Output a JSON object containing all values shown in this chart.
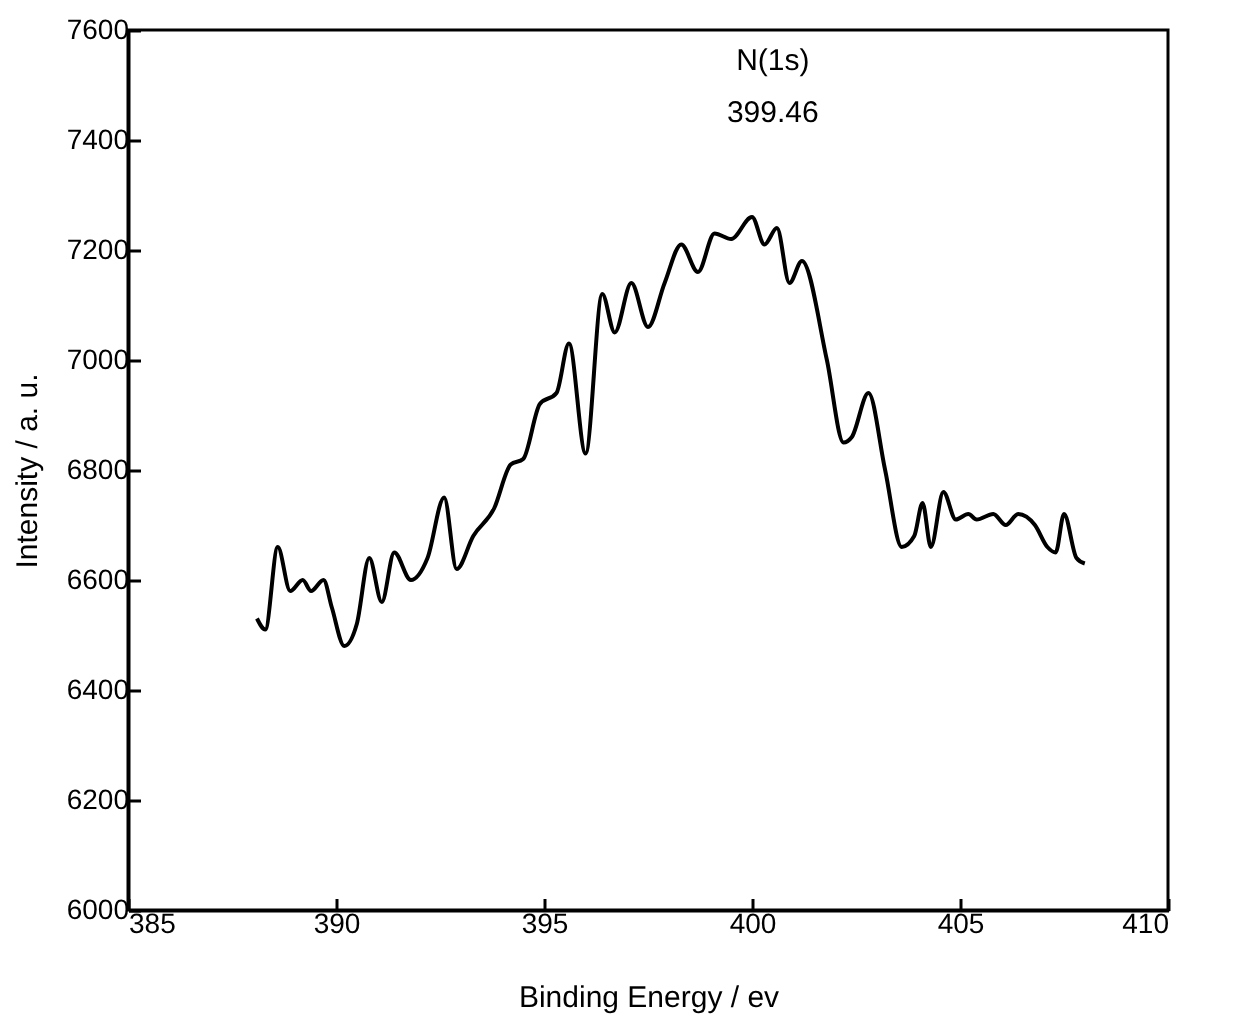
{
  "chart_data": {
    "type": "line",
    "xlabel": "Binding Energy / ev",
    "ylabel": "Intensity / a. u.",
    "annotations": [
      "N(1s)",
      "399.46"
    ],
    "xlim": [
      385,
      410
    ],
    "xticks": [
      385,
      390,
      395,
      400,
      405,
      410
    ],
    "ylim": [
      6000,
      7600
    ],
    "yticks": [
      6000,
      6200,
      6400,
      6600,
      6800,
      7000,
      7200,
      7400,
      7600
    ],
    "grid": false,
    "marker": "none",
    "line_style": "solid",
    "x": [
      388.1,
      388.3,
      388.6,
      388.9,
      389.2,
      389.4,
      389.7,
      389.9,
      390.2,
      390.5,
      390.8,
      391.1,
      391.4,
      391.8,
      392.2,
      392.6,
      392.9,
      393.3,
      393.8,
      394.2,
      394.5,
      394.9,
      395.3,
      395.6,
      396.0,
      396.4,
      396.7,
      397.1,
      397.5,
      397.9,
      398.3,
      398.7,
      399.1,
      399.5,
      400.0,
      400.3,
      400.6,
      400.9,
      401.2,
      401.8,
      402.2,
      402.4,
      402.8,
      403.2,
      403.6,
      403.9,
      404.1,
      404.3,
      404.6,
      404.9,
      405.2,
      405.4,
      405.8,
      406.1,
      406.4,
      406.8,
      407.1,
      407.3,
      407.5,
      407.8,
      408.0
    ],
    "series": [
      {
        "color": "#000000",
        "values": [
          6530,
          6510,
          6660,
          6580,
          6600,
          6580,
          6600,
          6550,
          6480,
          6520,
          6640,
          6560,
          6650,
          6600,
          6640,
          6750,
          6620,
          6680,
          6730,
          6810,
          6820,
          6920,
          6940,
          7030,
          6830,
          7120,
          7050,
          7140,
          7060,
          7140,
          7210,
          7160,
          7230,
          7220,
          7260,
          7210,
          7240,
          7140,
          7180,
          7000,
          6850,
          6860,
          6940,
          6800,
          6660,
          6680,
          6740,
          6660,
          6760,
          6710,
          6720,
          6710,
          6720,
          6700,
          6720,
          6700,
          6660,
          6650,
          6720,
          6640,
          6630
        ]
      }
    ]
  }
}
